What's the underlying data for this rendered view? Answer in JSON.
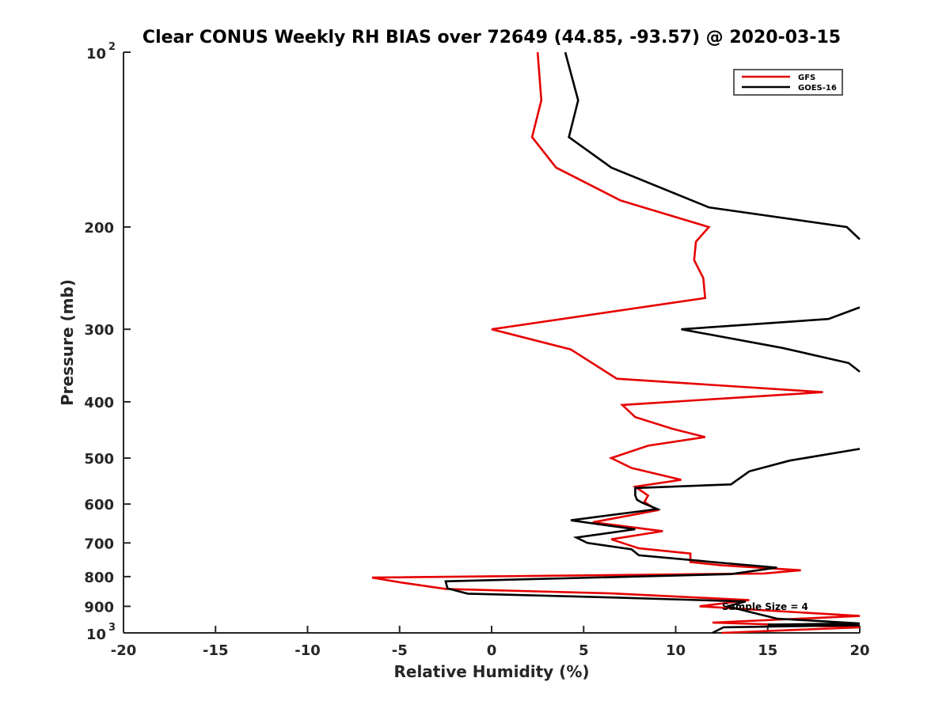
{
  "chart_data": {
    "type": "line",
    "title": "Clear CONUS Weekly RH BIAS over 72649 (44.85, -93.57) @ 2020-03-15",
    "xlabel": "Relative Humidity (%)",
    "ylabel": "Pressure (mb)",
    "xlim": [
      -20,
      20
    ],
    "ylim": [
      1000,
      100
    ],
    "y_scale": "log",
    "y_reversed": true,
    "grid": false,
    "legend_position": "top-right",
    "x_ticks": [
      "-20",
      "-15",
      "-10",
      "-5",
      "0",
      "5",
      "10",
      "15",
      "20"
    ],
    "y_ticks": [
      {
        "value": 100,
        "base": "10",
        "exp": "2"
      },
      {
        "value": 200,
        "label": "200"
      },
      {
        "value": 300,
        "label": "300"
      },
      {
        "value": 400,
        "label": "400"
      },
      {
        "value": 500,
        "label": "500"
      },
      {
        "value": 600,
        "label": "600"
      },
      {
        "value": 700,
        "label": "700"
      },
      {
        "value": 800,
        "label": "800"
      },
      {
        "value": 900,
        "label": "900"
      },
      {
        "value": 1000,
        "base": "10",
        "exp": "3"
      }
    ],
    "annotation": "Sample Size = 4",
    "series": [
      {
        "name": "GFS",
        "color": "#e60000",
        "x": [
          2.5,
          2.7,
          2.2,
          3.5,
          7.0,
          11.8,
          11.1,
          11.0,
          11.5,
          11.6,
          0.0,
          4.3,
          6.8,
          18.0,
          7.1,
          7.8,
          9.8,
          11.6,
          8.5,
          6.5,
          7.6,
          10.3,
          7.8,
          8.5,
          8.3,
          9.0,
          5.5,
          9.3,
          6.5,
          8.0,
          10.8,
          10.8,
          12.5,
          16.8,
          14.8,
          -6.5,
          -4.8,
          -2.5,
          6.5,
          14.0,
          11.3,
          15.0,
          20.0,
          12.0,
          20.0,
          12.5
        ],
        "y": [
          100,
          121,
          140,
          158,
          180,
          200,
          212,
          228,
          245,
          265,
          300,
          325,
          365,
          385,
          405,
          425,
          445,
          460,
          476,
          500,
          520,
          545,
          560,
          580,
          595,
          615,
          645,
          668,
          690,
          715,
          730,
          755,
          765,
          780,
          790,
          803,
          820,
          840,
          855,
          878,
          900,
          915,
          935,
          960,
          978,
          1000
        ]
      },
      {
        "name": "GOES-16",
        "color": "#000000",
        "x": [
          4.0,
          4.7,
          4.2,
          6.5,
          11.8,
          19.3,
          20.0,
          null,
          20.0,
          18.3,
          10.3,
          15.8,
          19.4,
          20.0,
          null,
          20.0,
          16.2,
          14.0,
          13.0,
          7.8,
          7.8,
          7.9,
          8.2,
          9.0,
          4.3,
          7.8,
          4.6,
          5.2,
          7.6,
          8.0,
          13.0,
          15.5,
          13.0,
          -2.5,
          -2.4,
          -1.3,
          6.5,
          13.8,
          12.8,
          14.0,
          15.5,
          20.0,
          15.0,
          20.0,
          12.6,
          12.0
        ],
        "y": [
          100,
          121,
          140,
          158,
          185,
          200,
          210,
          null,
          275,
          288,
          300,
          323,
          343,
          355,
          null,
          482,
          505,
          527,
          555,
          563,
          580,
          590,
          597,
          612,
          640,
          663,
          685,
          700,
          718,
          735,
          760,
          772,
          792,
          815,
          838,
          856,
          869,
          883,
          900,
          920,
          945,
          963,
          968,
          970,
          978,
          1000
        ]
      }
    ]
  }
}
